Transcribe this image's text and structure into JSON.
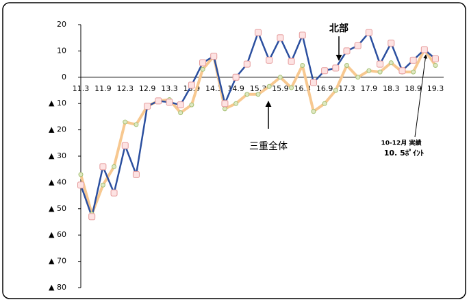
{
  "chart_data": {
    "type": "line",
    "categories": [
      "11.3",
      null,
      "11.9",
      null,
      "12.3",
      null,
      "12.9",
      null,
      "13.3",
      null,
      "13.9",
      null,
      "14.3",
      null,
      "14.9",
      null,
      "15.3",
      null,
      "15.9",
      null,
      "16.3",
      null,
      "16.9",
      null,
      "17.3",
      null,
      "17.9",
      null,
      "18.3",
      null,
      "18.9",
      null,
      "19.3"
    ],
    "series": [
      {
        "name": "三重全体",
        "color": "#f7c890",
        "values": [
          -37,
          -52,
          -41,
          -34,
          -17,
          -18,
          -11,
          -9,
          -8.5,
          -13.5,
          -10.5,
          3,
          8,
          -12,
          -10,
          -6.5,
          -6.5,
          -3.5,
          0,
          -4,
          4.5,
          -13,
          -10,
          -5,
          4.5,
          0,
          2.5,
          2,
          5.5,
          2,
          2,
          10.5,
          4.5
        ]
      },
      {
        "name": "北部",
        "color": "#2b4f9f",
        "values": [
          -41,
          -53,
          -34,
          -44,
          -26,
          -37,
          -11,
          -9,
          -9.5,
          -10.5,
          -3,
          5.5,
          8,
          -10,
          0,
          5,
          17,
          6.5,
          15,
          6,
          16,
          -2,
          2.5,
          3.5,
          10,
          12,
          17,
          5,
          13,
          2.5,
          6.5,
          10.5,
          7
        ]
      }
    ],
    "annotations": [
      "10-12月 実績",
      "10. 5ﾎﾟｲﾝﾄ"
    ],
    "ylim": [
      -80,
      20
    ],
    "yticks": [
      20,
      10,
      0,
      {
        "value": -10,
        "label": "▲ 10"
      },
      {
        "value": -20,
        "label": "▲ 20"
      },
      {
        "value": -30,
        "label": "▲ 30"
      },
      {
        "value": -40,
        "label": "▲ 40"
      },
      {
        "value": -50,
        "label": "▲ 50"
      },
      {
        "value": -60,
        "label": "▲ 60"
      },
      {
        "value": -70,
        "label": "▲ 70"
      },
      {
        "value": -80,
        "label": "▲ 80"
      }
    ]
  }
}
